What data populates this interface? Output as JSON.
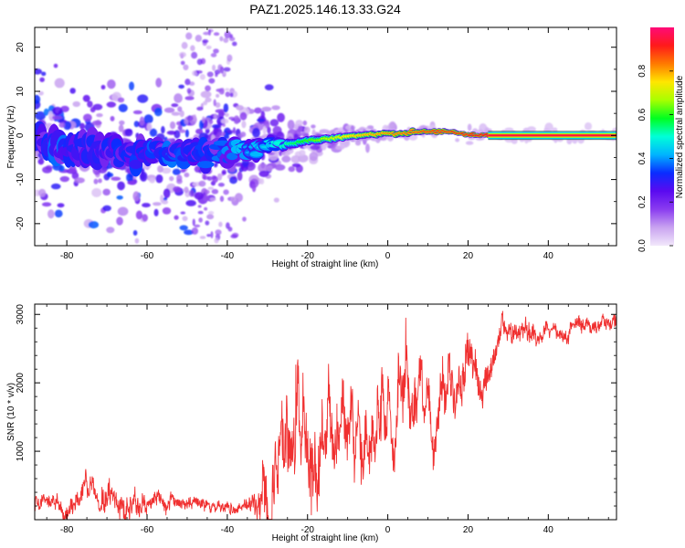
{
  "figure": {
    "title": "PAZ1.2025.146.13.33.G24"
  },
  "chart_data": [
    {
      "type": "heatmap",
      "xlabel": "Height of straight line (km)",
      "ylabel": "Frequency (Hz)",
      "xlim": [
        -88,
        57
      ],
      "ylim": [
        -25,
        24.5
      ],
      "xticks": [
        -80,
        -60,
        -40,
        -20,
        0,
        20,
        40
      ],
      "yticks": [
        -20,
        -10,
        0,
        10,
        20
      ],
      "grid": false,
      "colorbar": {
        "label": "Normalized spectral amplitude",
        "range": [
          0,
          1
        ],
        "ticks": [
          "0.0",
          "0.2",
          "0.4",
          "0.6",
          "0.8"
        ],
        "colors": [
          "#f2e8fb",
          "#c9a3f0",
          "#8a3cf0",
          "#5a0af0",
          "#0a2cff",
          "#00b4ff",
          "#00ffd8",
          "#00ff20",
          "#a8ff00",
          "#ffe600",
          "#ff7a00",
          "#ff1a1a",
          "#ff0a78"
        ]
      },
      "ridge": [
        {
          "x": -88,
          "y": -1.0
        },
        {
          "x": -80,
          "y": -3.0
        },
        {
          "x": -70,
          "y": -3.5
        },
        {
          "x": -60,
          "y": -3.5
        },
        {
          "x": -50,
          "y": -4.0
        },
        {
          "x": -45,
          "y": -3.5
        },
        {
          "x": -40,
          "y": -3.0
        },
        {
          "x": -35,
          "y": -3.5
        },
        {
          "x": -30,
          "y": -3.0
        },
        {
          "x": -25,
          "y": -2.0
        },
        {
          "x": -20,
          "y": -1.2
        },
        {
          "x": -15,
          "y": -0.8
        },
        {
          "x": -10,
          "y": -0.3
        },
        {
          "x": -5,
          "y": 0.2
        },
        {
          "x": 0,
          "y": 0.3
        },
        {
          "x": 5,
          "y": 0.5
        },
        {
          "x": 10,
          "y": 1.0
        },
        {
          "x": 15,
          "y": 0.8
        },
        {
          "x": 20,
          "y": 0.2
        },
        {
          "x": 25,
          "y": 0.0
        },
        {
          "x": 57,
          "y": 0.0
        }
      ],
      "amplitude": [
        {
          "x": -85,
          "a": 0.25
        },
        {
          "x": -70,
          "a": 0.28
        },
        {
          "x": -50,
          "a": 0.3
        },
        {
          "x": -40,
          "a": 0.35
        },
        {
          "x": -30,
          "a": 0.45
        },
        {
          "x": -20,
          "a": 0.6
        },
        {
          "x": -10,
          "a": 0.75
        },
        {
          "x": 0,
          "a": 0.82
        },
        {
          "x": 10,
          "a": 0.88
        },
        {
          "x": 20,
          "a": 0.9
        },
        {
          "x": 30,
          "a": 0.95
        },
        {
          "x": 57,
          "a": 0.97
        }
      ],
      "bandwidth": [
        {
          "x": -88,
          "w": 5.0
        },
        {
          "x": -40,
          "w": 2.8
        },
        {
          "x": -20,
          "w": 2.0
        },
        {
          "x": 0,
          "w": 1.5
        },
        {
          "x": 20,
          "w": 1.1
        },
        {
          "x": 57,
          "w": 0.8
        }
      ]
    },
    {
      "type": "line",
      "xlabel": "Height of straight line (km)",
      "ylabel": "SNR (10 * v/v)",
      "xlim": [
        -88,
        57
      ],
      "ylim": [
        0,
        3150
      ],
      "xticks": [
        -80,
        -60,
        -40,
        -20,
        0,
        20,
        40
      ],
      "yticks": [
        1000,
        2000,
        3000
      ],
      "grid": false,
      "series": [
        {
          "color": "#f03030",
          "envelope": [
            {
              "x": -88,
              "base": 250,
              "amp": 150
            },
            {
              "x": -75,
              "base": 300,
              "amp": 250
            },
            {
              "x": -68,
              "base": 380,
              "amp": 350
            },
            {
              "x": -60,
              "base": 300,
              "amp": 220
            },
            {
              "x": -45,
              "base": 210,
              "amp": 120
            },
            {
              "x": -36,
              "base": 200,
              "amp": 120
            },
            {
              "x": -32,
              "base": 550,
              "amp": 420
            },
            {
              "x": -29,
              "base": 850,
              "amp": 800
            },
            {
              "x": -20,
              "base": 1100,
              "amp": 950
            },
            {
              "x": -10,
              "base": 1350,
              "amp": 650
            },
            {
              "x": 0,
              "base": 1600,
              "amp": 700
            },
            {
              "x": 10,
              "base": 1850,
              "amp": 600
            },
            {
              "x": 20,
              "base": 2150,
              "amp": 450
            },
            {
              "x": 30,
              "base": 2580,
              "amp": 260
            },
            {
              "x": 40,
              "base": 2750,
              "amp": 200
            },
            {
              "x": 57,
              "base": 2870,
              "amp": 170
            }
          ]
        }
      ]
    }
  ]
}
